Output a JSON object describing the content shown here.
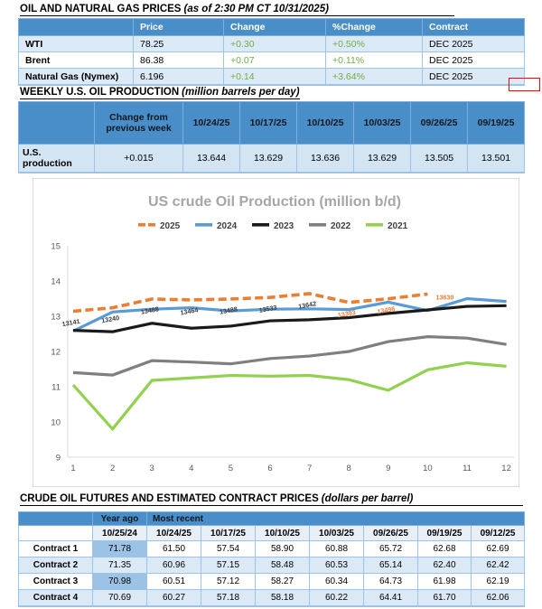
{
  "colors": {
    "header_blue": "#4a8ec9",
    "band_light": "#dce9f6",
    "t2_row": "#d3e4f3",
    "year_ago": "#9cc3e6",
    "dates_row": "#e9eff7",
    "border_blue": "#9dc3e6",
    "change_green": "#70ad47",
    "red_box": "#ff0000",
    "chart_title_gray": "#a6a6a6",
    "axis_gray": "#595959"
  },
  "section1": {
    "title": "OIL AND NATURAL GAS PRICES",
    "subtitle": "(as of 2:30 PM CT 10/31/2025)",
    "table": {
      "headers": [
        "",
        "Price",
        "Change",
        "%Change",
        "Contract"
      ],
      "rows": [
        {
          "label": "WTI",
          "price": "78.25",
          "change": "+0.30",
          "pct": "+0.50%",
          "contract": "DEC 2025"
        },
        {
          "label": "Brent",
          "price": "86.38",
          "change": "+0.07",
          "pct": "+0.11%",
          "contract": "DEC 2025"
        },
        {
          "label": "Natural Gas (Nymex)",
          "price": "6.196",
          "change": "+0.14",
          "pct": "+3.64%",
          "contract": "DEC 2025"
        }
      ]
    }
  },
  "section2": {
    "title": "WEEKLY U.S. OIL PRODUCTION",
    "subtitle": "(million barrels per day)",
    "table": {
      "headers": [
        "",
        "Change from previous week",
        "10/24/25",
        "10/17/25",
        "10/10/25",
        "10/03/25",
        "09/26/25",
        "09/19/25"
      ],
      "row_label": "U.S. production",
      "values": [
        "+0.015",
        "13.644",
        "13.629",
        "13.636",
        "13.629",
        "13.505",
        "13.501"
      ]
    }
  },
  "chart_data": {
    "type": "line",
    "title": "US crude Oil Production (million b/d)",
    "xlabel": "",
    "ylabel": "",
    "x": [
      1,
      2,
      3,
      4,
      5,
      6,
      7,
      8,
      9,
      10,
      11,
      12
    ],
    "ylim": [
      9,
      15
    ],
    "yticks": [
      9,
      10,
      11,
      12,
      13,
      14,
      15
    ],
    "grid": false,
    "legend_position": "top",
    "series": [
      {
        "name": "2025",
        "color": "#ed7d31",
        "dashed": true,
        "values": [
          13.141,
          13.24,
          13.488,
          13.464,
          13.488,
          13.533,
          13.642,
          13.393,
          13.496,
          13.63
        ],
        "labels": [
          "13141",
          "13240",
          "13488",
          "13464",
          "13488",
          "13533",
          "13642",
          "13393",
          "13496",
          "13630"
        ],
        "label_colors": [
          "#3a3a3a",
          "#3a3a3a",
          "#3a3a3a",
          "#3a3a3a",
          "#3a3a3a",
          "#3a3a3a",
          "#3a3a3a",
          "#ed7d31",
          "#ed7d31",
          "#ed7d31"
        ]
      },
      {
        "name": "2024",
        "color": "#5b9bd5",
        "dashed": false,
        "values": [
          12.58,
          13.12,
          13.2,
          13.24,
          13.15,
          13.2,
          13.21,
          13.19,
          13.4,
          13.16,
          13.5,
          13.42
        ]
      },
      {
        "name": "2023",
        "color": "#1a1a1a",
        "dashed": false,
        "values": [
          12.6,
          12.56,
          12.8,
          12.66,
          12.72,
          12.87,
          12.9,
          12.96,
          13.08,
          13.18,
          13.28,
          13.3
        ]
      },
      {
        "name": "2022",
        "color": "#7f7f7f",
        "dashed": false,
        "values": [
          11.4,
          11.33,
          11.74,
          11.7,
          11.65,
          11.8,
          11.87,
          12.0,
          12.28,
          12.42,
          12.38,
          12.2
        ]
      },
      {
        "name": "2021",
        "color": "#92d050",
        "dashed": false,
        "values": [
          11.05,
          9.8,
          11.18,
          11.25,
          11.32,
          11.3,
          11.32,
          11.2,
          10.9,
          11.48,
          11.68,
          11.58
        ]
      }
    ]
  },
  "section3": {
    "title": "CRUDE OIL FUTURES AND ESTIMATED CONTRACT PRICES",
    "subtitle": "(dollars per barrel)",
    "table": {
      "group_headers": [
        "",
        "Year ago",
        "Most recent"
      ],
      "date_headers": [
        "",
        "10/25/24",
        "10/24/25",
        "10/17/25",
        "10/10/25",
        "10/03/25",
        "09/26/25",
        "09/19/25",
        "09/12/25"
      ],
      "rows": [
        {
          "label": "Contract 1",
          "values": [
            "71.78",
            "61.50",
            "57.54",
            "58.90",
            "60.88",
            "65.72",
            "62.68",
            "62.69"
          ]
        },
        {
          "label": "Contract 2",
          "values": [
            "71.35",
            "60.96",
            "57.15",
            "58.48",
            "60.53",
            "65.14",
            "62.40",
            "62.42"
          ]
        },
        {
          "label": "Contract 3",
          "values": [
            "70.98",
            "60.51",
            "57.12",
            "58.27",
            "60.34",
            "64.73",
            "61.98",
            "62.19"
          ]
        },
        {
          "label": "Contract 4",
          "values": [
            "70.69",
            "60.27",
            "57.18",
            "58.18",
            "60.22",
            "64.41",
            "61.70",
            "62.06"
          ]
        }
      ]
    }
  }
}
